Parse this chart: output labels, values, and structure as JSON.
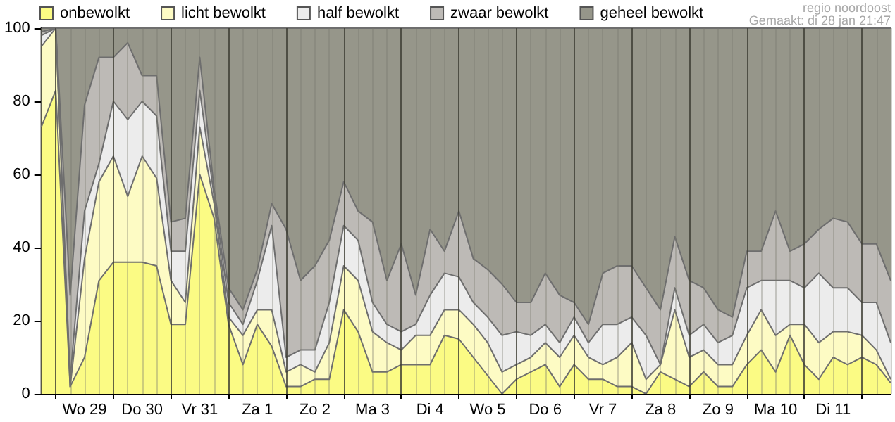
{
  "chart_data": {
    "type": "area",
    "stacked": true,
    "grid": true,
    "legend": "top",
    "marker": "none",
    "line_style": "solid",
    "annotations": [
      "regio noordoost",
      "Gemaakt: di 28 jan 21:47"
    ],
    "categories": [
      null,
      null,
      null,
      "Wo 29",
      null,
      null,
      null,
      "Do 30",
      null,
      null,
      null,
      "Vr 31",
      null,
      null,
      null,
      "Za 1",
      null,
      null,
      null,
      "Zo 2",
      null,
      null,
      null,
      "Ma 3",
      null,
      null,
      null,
      "Di 4",
      null,
      null,
      null,
      "Wo 5",
      null,
      null,
      null,
      "Do 6",
      null,
      null,
      null,
      "Vr 7",
      null,
      null,
      null,
      "Za 8",
      null,
      null,
      null,
      "Zo 9",
      null,
      null,
      null,
      "Ma 10",
      null,
      null,
      null,
      "Di 11",
      null,
      null,
      null,
      null
    ],
    "ylim": [
      0,
      100
    ],
    "yticks": [
      0,
      20,
      40,
      60,
      80,
      100
    ],
    "series": [
      {
        "name": "onbewolkt",
        "color": "#fbfb84",
        "values": [
          73,
          83,
          2,
          10,
          31,
          36,
          36,
          36,
          35,
          19,
          19,
          60,
          48,
          19,
          8,
          19,
          13,
          2,
          2,
          4,
          4,
          23,
          17,
          6,
          6,
          8,
          8,
          8,
          16,
          15,
          10,
          5,
          0,
          4,
          6,
          8,
          2,
          8,
          4,
          4,
          2,
          2,
          0,
          6,
          4,
          2,
          6,
          2,
          2,
          8,
          12,
          6,
          16,
          8,
          4,
          10,
          8,
          10,
          8,
          3
        ]
      },
      {
        "name": "licht bewolkt",
        "color": "#fdfbc4",
        "values": [
          22,
          17,
          0,
          27,
          27,
          29,
          18,
          29,
          24,
          12,
          6,
          13,
          4,
          2,
          8,
          4,
          10,
          4,
          6,
          2,
          10,
          12,
          14,
          11,
          8,
          4,
          8,
          8,
          7,
          8,
          9,
          9,
          6,
          4,
          4,
          6,
          8,
          8,
          6,
          4,
          8,
          12,
          4,
          2,
          19,
          8,
          6,
          6,
          6,
          8,
          11,
          10,
          3,
          11,
          10,
          7,
          9,
          6,
          4,
          1
        ]
      },
      {
        "name": "half bewolkt",
        "color": "#ececec",
        "values": [
          3,
          0,
          2,
          13,
          5,
          15,
          21,
          15,
          17,
          8,
          14,
          10,
          2,
          4,
          3,
          8,
          23,
          4,
          4,
          6,
          11,
          11,
          11,
          8,
          5,
          5,
          3,
          11,
          10,
          9,
          6,
          7,
          10,
          9,
          6,
          5,
          4,
          5,
          4,
          11,
          9,
          7,
          12,
          0,
          6,
          6,
          7,
          6,
          8,
          13,
          8,
          15,
          12,
          10,
          19,
          12,
          12,
          9,
          13,
          10
        ]
      },
      {
        "name": "zwaar bewolkt",
        "color": "#bdbab6",
        "values": [
          1,
          0,
          23,
          29,
          29,
          12,
          21,
          7,
          11,
          8,
          9,
          9,
          2,
          4,
          4,
          3,
          6,
          35,
          19,
          23,
          17,
          12,
          8,
          22,
          12,
          24,
          8,
          18,
          6,
          18,
          12,
          13,
          14,
          8,
          9,
          14,
          13,
          4,
          5,
          14,
          16,
          14,
          13,
          15,
          14,
          15,
          10,
          9,
          5,
          10,
          8,
          19,
          8,
          12,
          12,
          19,
          18,
          16,
          16,
          17
        ]
      },
      {
        "name": "geheel bewolkt",
        "color": "#96968a",
        "values": [
          1,
          0,
          73,
          21,
          8,
          8,
          4,
          13,
          13,
          53,
          52,
          8,
          44,
          71,
          77,
          66,
          48,
          55,
          69,
          65,
          58,
          42,
          50,
          53,
          69,
          59,
          73,
          55,
          61,
          50,
          63,
          66,
          70,
          75,
          75,
          67,
          73,
          75,
          81,
          67,
          65,
          65,
          71,
          77,
          57,
          69,
          71,
          77,
          79,
          61,
          61,
          50,
          61,
          59,
          55,
          52,
          53,
          59,
          59,
          69
        ]
      }
    ]
  }
}
